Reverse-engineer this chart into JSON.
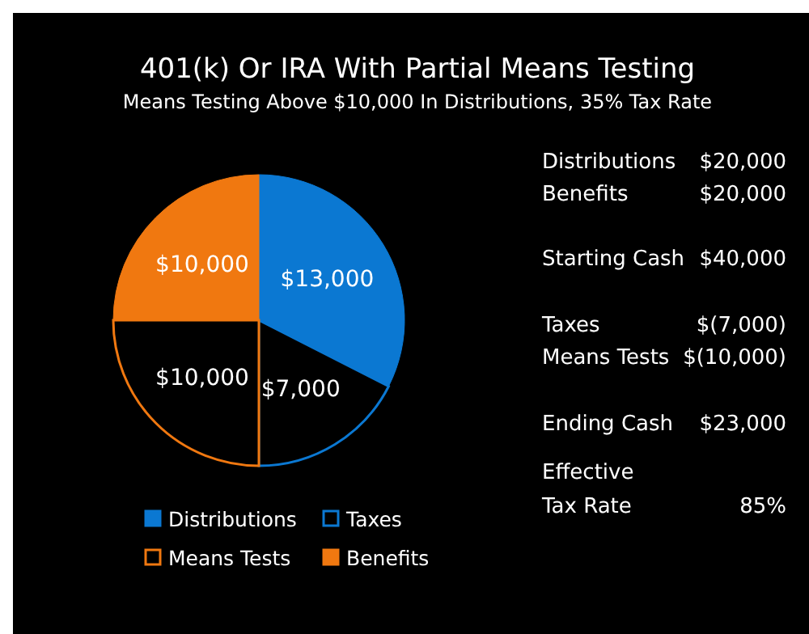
{
  "chart_data": [
    {
      "type": "pie",
      "title": "401(k) Or IRA With Partial Means Testing",
      "subtitle": "Means Testing Above $10,000 In Distributions, 35% Tax Rate",
      "categories": [
        "Distributions",
        "Taxes",
        "Means Tests",
        "Benefits"
      ],
      "values": [
        13000,
        7000,
        10000,
        10000
      ],
      "value_labels": [
        "$13,000",
        "$7,000",
        "$10,000",
        "$10,000"
      ],
      "colors": [
        "#0b78d2",
        "#000000",
        "#000000",
        "#f07810"
      ],
      "legend": "bottom"
    },
    {
      "type": "other",
      "annotations": [
        "Distributions",
        "$20,000",
        "Benefits",
        "$20,000",
        "Starting Cash",
        "$40,000",
        "Taxes",
        "$(7,000)",
        "Means Tests",
        "$(10,000)",
        "Ending Cash",
        "$23,000",
        "Effective\nTax Rate",
        "85%"
      ]
    }
  ]
}
